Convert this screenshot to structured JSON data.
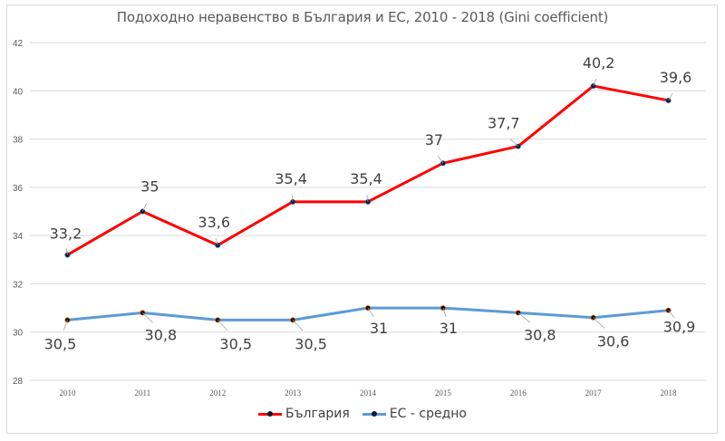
{
  "chart_data": {
    "type": "line",
    "title": "Подоходно неравенство в България и ЕС, 2010 - 2018 (Gini coefficient)",
    "xlabel": "",
    "ylabel": "",
    "categories": [
      "2010",
      "2011",
      "2012",
      "2013",
      "2014",
      "2015",
      "2016",
      "2017",
      "2018"
    ],
    "ylim": [
      28,
      42
    ],
    "yticks": [
      "28",
      "30",
      "32",
      "34",
      "36",
      "38",
      "40",
      "42"
    ],
    "ytick_values": [
      28,
      30,
      32,
      34,
      36,
      38,
      40,
      42
    ],
    "grid": true,
    "legend_position": "bottom",
    "series": [
      {
        "name": "България",
        "color": "#ff0000",
        "marker_color": "#0b1a33",
        "values": [
          33.2,
          35,
          33.6,
          35.4,
          35.4,
          37,
          37.7,
          40.2,
          39.6
        ],
        "labels": [
          "33,2",
          "35",
          "33,6",
          "35,4",
          "35,4",
          "37",
          "37,7",
          "40,2",
          "39,6"
        ]
      },
      {
        "name": "ЕС - средно",
        "color": "#5b9bd5",
        "marker_color": "#1a0a00",
        "values": [
          30.5,
          30.8,
          30.5,
          30.5,
          31,
          31,
          30.8,
          30.6,
          30.9
        ],
        "labels": [
          "30,5",
          "30,8",
          "30,5",
          "30,5",
          "31",
          "31",
          "30,8",
          "30,6",
          "30,9"
        ]
      }
    ]
  }
}
